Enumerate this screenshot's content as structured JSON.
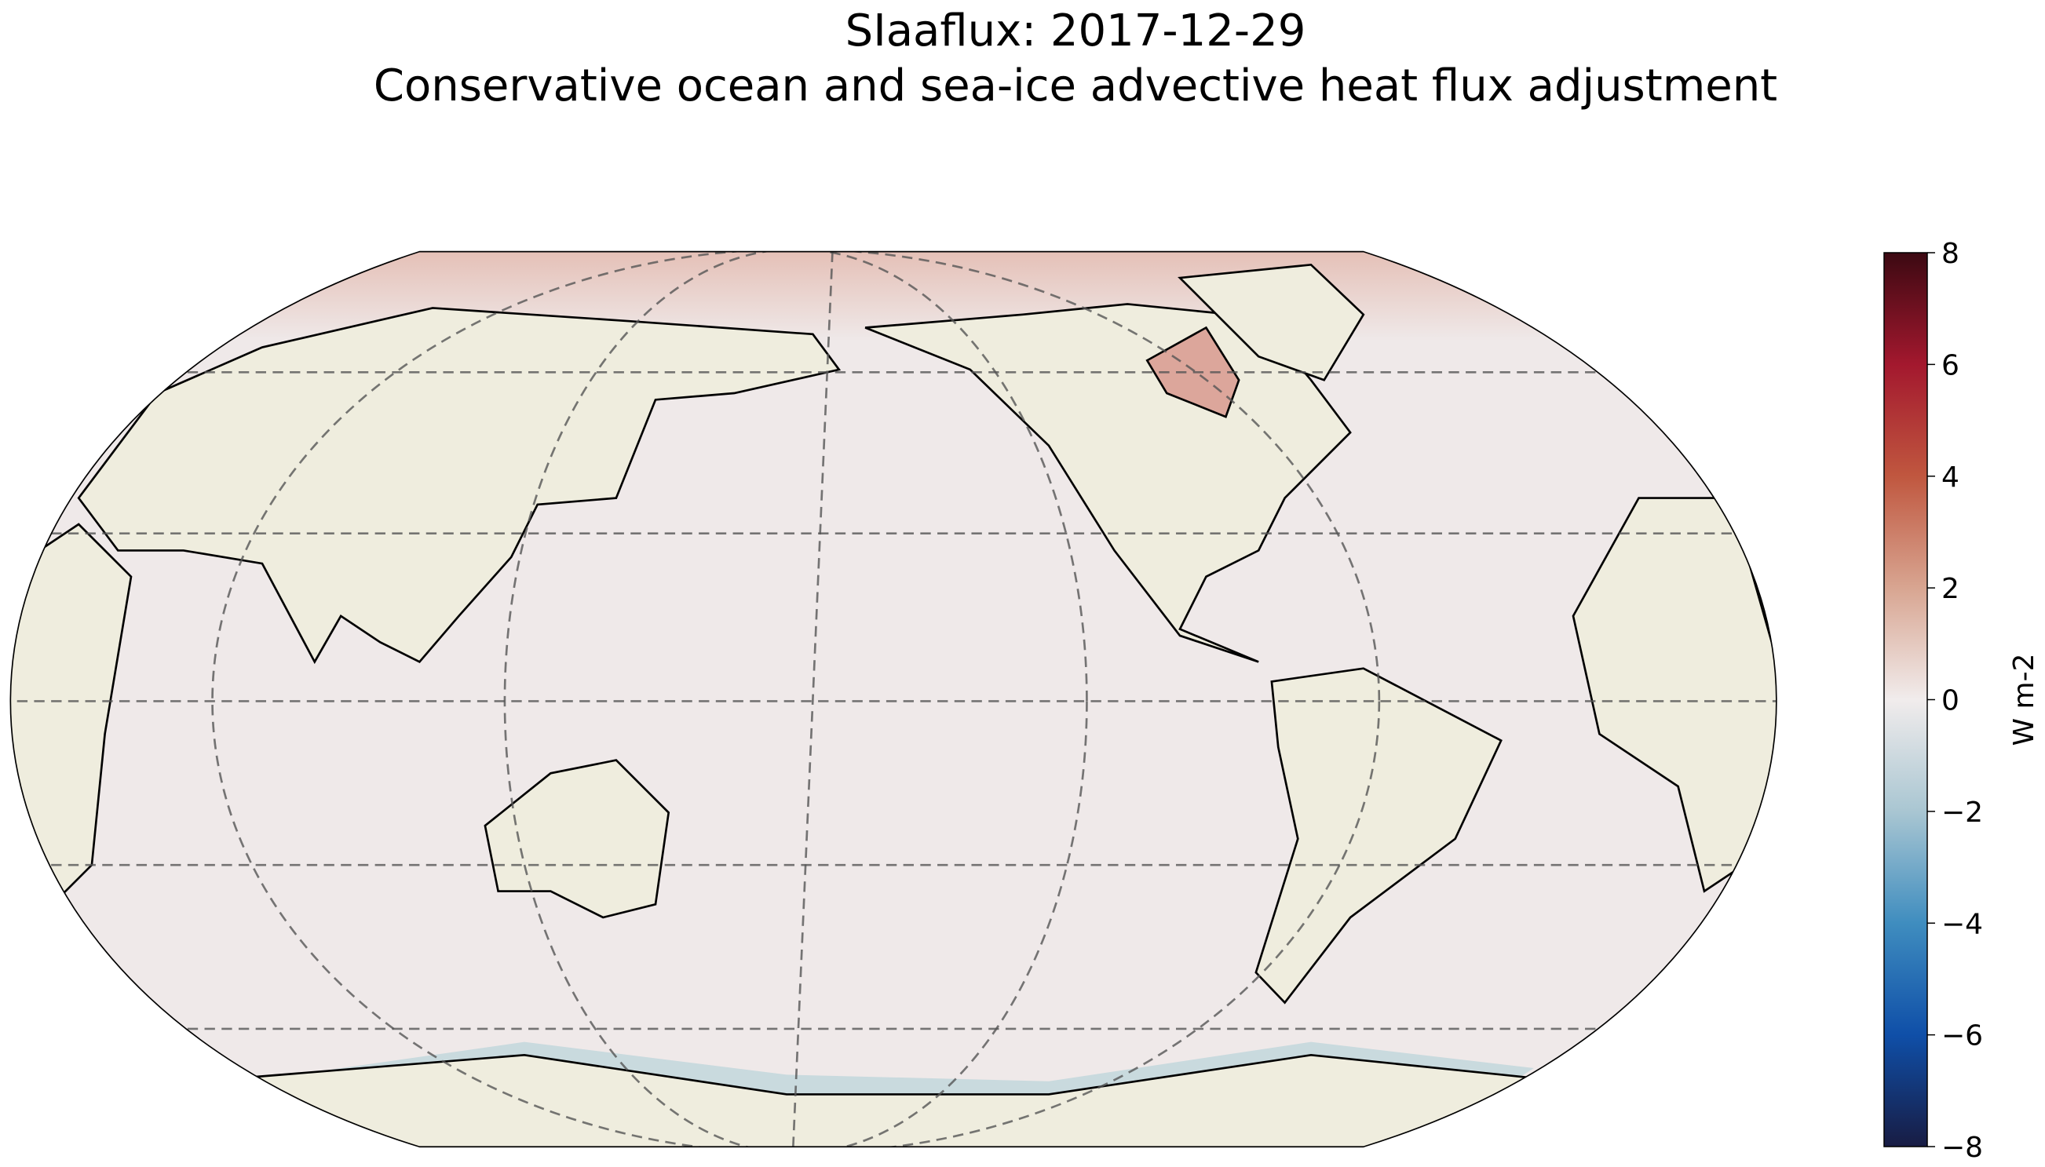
{
  "map": {
    "title": "SIaaflux: 2017-12-29",
    "subtitle": "Conservative ocean and sea-ice advective heat flux adjustment",
    "colorbar": {
      "label": "W m-2",
      "lim": [
        -8,
        8
      ],
      "ticks": [
        {
          "value": -8,
          "label": "−8"
        },
        {
          "value": -6,
          "label": "−6"
        },
        {
          "value": -4,
          "label": "−4"
        },
        {
          "value": -2,
          "label": "−2"
        },
        0,
        2,
        4,
        6,
        8
      ],
      "colors": [
        "#181c43",
        "#0f4fa8",
        "#3f8dbf",
        "#a9c6d2",
        "#f1ecec",
        "#d8a591",
        "#c0573f",
        "#a3182e",
        "#3c0912"
      ]
    }
  }
}
